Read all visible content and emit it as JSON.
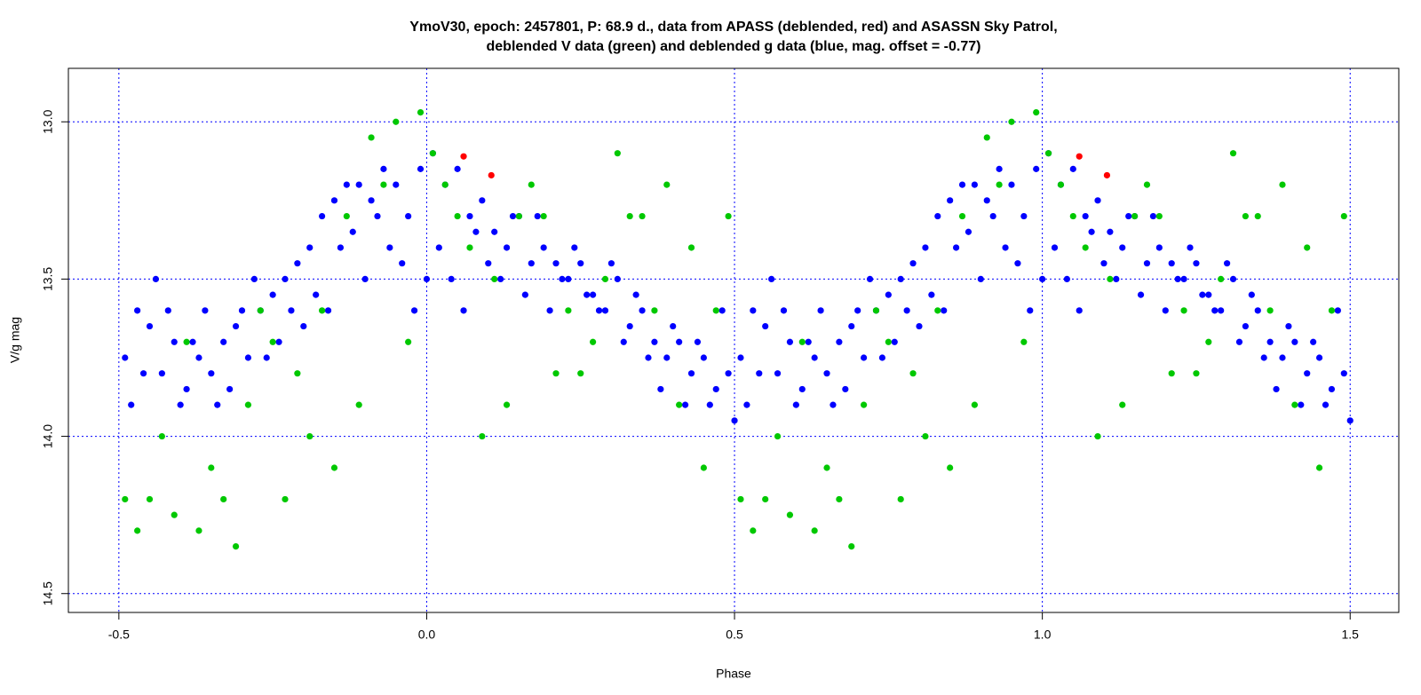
{
  "chart_data": {
    "type": "scatter",
    "title": "YmoV30, epoch: 2457801, P: 68.9 d., data from APASS (deblended, red) and ASASSN Sky Patrol,",
    "subtitle": "deblended V data (green) and deblended g data (blue, mag. offset = -0.77)",
    "xlabel": "Phase",
    "ylabel": "V/g mag",
    "xlim": [
      -0.582,
      1.579
    ],
    "ylim": [
      14.56,
      12.83
    ],
    "xticks": [
      {
        "value": -0.5,
        "label": "-0.5"
      },
      {
        "value": 0,
        "label": "0.0"
      },
      {
        "value": 0.5,
        "label": "0.5"
      },
      {
        "value": 1,
        "label": "1.0"
      },
      {
        "value": 1.5,
        "label": "1.5"
      }
    ],
    "yticks": [
      {
        "value": 13,
        "label": "13.0"
      },
      {
        "value": 13.5,
        "label": "13.5"
      },
      {
        "value": 14,
        "label": "14.0"
      },
      {
        "value": 14.5,
        "label": "14.5"
      }
    ],
    "grid": true,
    "series": [
      {
        "color": "#0000ff",
        "x": [
          -0.49,
          -0.47,
          -0.45,
          -0.43,
          -0.41,
          -0.39,
          -0.37,
          -0.35,
          -0.33,
          -0.31,
          -0.29,
          -0.27,
          -0.25,
          -0.23,
          -0.21,
          -0.19,
          -0.17,
          -0.15,
          -0.13,
          -0.11,
          -0.09,
          -0.07,
          -0.05,
          -0.03,
          -0.01,
          0.01,
          0.03,
          0.05,
          0.07,
          0.09,
          0.11,
          0.13,
          0.15,
          0.17,
          0.19,
          0.21,
          0.23,
          0.25,
          0.27,
          0.29,
          0.31,
          0.33,
          0.35,
          0.37,
          0.39,
          0.41,
          0.43,
          0.45,
          0.47,
          0.49
        ],
        "values": [
          13.75,
          13.6,
          13.65,
          13.8,
          13.7,
          13.85,
          13.75,
          13.8,
          13.7,
          13.65,
          13.75,
          13.6,
          13.55,
          13.5,
          13.45,
          13.4,
          13.3,
          13.25,
          13.2,
          13.2,
          13.25,
          13.15,
          13.2,
          13.3,
          13.15,
          13.1,
          13.2,
          13.15,
          13.3,
          13.25,
          13.35,
          13.4,
          13.3,
          13.45,
          13.4,
          13.45,
          13.5,
          13.45,
          13.55,
          13.6,
          13.5,
          13.65,
          13.6,
          13.7,
          13.75,
          13.7,
          13.8,
          13.75,
          13.85,
          13.8
        ]
      },
      {
        "color": "#0000ff",
        "x": [
          -0.48,
          -0.46,
          -0.44,
          -0.42,
          -0.4,
          -0.38,
          -0.36,
          -0.34,
          -0.32,
          -0.3,
          -0.28,
          -0.26,
          -0.24,
          -0.22,
          -0.2,
          -0.18,
          -0.16,
          -0.14,
          -0.12,
          -0.1,
          -0.08,
          -0.06,
          -0.04,
          -0.02,
          0,
          0.02,
          0.04,
          0.06,
          0.08,
          0.1,
          0.12,
          0.14,
          0.16,
          0.18,
          0.2,
          0.22,
          0.24,
          0.26,
          0.28,
          0.3,
          0.32,
          0.34,
          0.36,
          0.38,
          0.4,
          0.42,
          0.44,
          0.46,
          0.48,
          0.5
        ],
        "values": [
          13.9,
          13.8,
          13.5,
          13.6,
          13.9,
          13.7,
          13.6,
          13.9,
          13.85,
          13.6,
          13.5,
          13.75,
          13.7,
          13.6,
          13.65,
          13.55,
          13.6,
          13.4,
          13.35,
          13.5,
          13.3,
          13.4,
          13.45,
          13.6,
          13.5,
          13.4,
          13.5,
          13.6,
          13.35,
          13.45,
          13.5,
          13.3,
          13.55,
          13.3,
          13.6,
          13.5,
          13.4,
          13.55,
          13.6,
          13.45,
          13.7,
          13.55,
          13.75,
          13.85,
          13.65,
          13.9,
          13.7,
          13.9,
          13.6,
          13.95
        ]
      },
      {
        "color": "#0000ff",
        "x": [
          0.51,
          0.53,
          0.55,
          0.57,
          0.59,
          0.61,
          0.63,
          0.65,
          0.67,
          0.69,
          0.71,
          0.73,
          0.75,
          0.77,
          0.79,
          0.81,
          0.83,
          0.85,
          0.87,
          0.89,
          0.91,
          0.93,
          0.95,
          0.97,
          0.99,
          1.01,
          1.03,
          1.05,
          1.07,
          1.09,
          1.11,
          1.13,
          1.15,
          1.17,
          1.19,
          1.21,
          1.23,
          1.25,
          1.27,
          1.29,
          1.31,
          1.33,
          1.35,
          1.37,
          1.39,
          1.41,
          1.43,
          1.45,
          1.47,
          1.49
        ],
        "values": [
          13.75,
          13.6,
          13.65,
          13.8,
          13.7,
          13.85,
          13.75,
          13.8,
          13.7,
          13.65,
          13.75,
          13.6,
          13.55,
          13.5,
          13.45,
          13.4,
          13.3,
          13.25,
          13.2,
          13.2,
          13.25,
          13.15,
          13.2,
          13.3,
          13.15,
          13.1,
          13.2,
          13.15,
          13.3,
          13.25,
          13.35,
          13.4,
          13.3,
          13.45,
          13.4,
          13.45,
          13.5,
          13.45,
          13.55,
          13.6,
          13.5,
          13.65,
          13.6,
          13.7,
          13.75,
          13.7,
          13.8,
          13.75,
          13.85,
          13.8
        ]
      },
      {
        "color": "#0000ff",
        "x": [
          0.52,
          0.54,
          0.56,
          0.58,
          0.6,
          0.62,
          0.64,
          0.66,
          0.68,
          0.7,
          0.72,
          0.74,
          0.76,
          0.78,
          0.8,
          0.82,
          0.84,
          0.86,
          0.88,
          0.9,
          0.92,
          0.94,
          0.96,
          0.98,
          1,
          1.02,
          1.04,
          1.06,
          1.08,
          1.1,
          1.12,
          1.14,
          1.16,
          1.18,
          1.2,
          1.22,
          1.24,
          1.26,
          1.28,
          1.3,
          1.32,
          1.34,
          1.36,
          1.38,
          1.4,
          1.42,
          1.44,
          1.46,
          1.48,
          1.5
        ],
        "values": [
          13.9,
          13.8,
          13.5,
          13.6,
          13.9,
          13.7,
          13.6,
          13.9,
          13.85,
          13.6,
          13.5,
          13.75,
          13.7,
          13.6,
          13.65,
          13.55,
          13.6,
          13.4,
          13.35,
          13.5,
          13.3,
          13.4,
          13.45,
          13.6,
          13.5,
          13.4,
          13.5,
          13.6,
          13.35,
          13.45,
          13.5,
          13.3,
          13.55,
          13.3,
          13.6,
          13.5,
          13.4,
          13.55,
          13.6,
          13.45,
          13.7,
          13.55,
          13.75,
          13.85,
          13.65,
          13.9,
          13.7,
          13.9,
          13.6,
          13.95
        ]
      },
      {
        "color": "#00c800",
        "x": [
          -0.49,
          -0.45,
          -0.41,
          -0.37,
          -0.33,
          -0.29,
          -0.25,
          -0.21,
          -0.17,
          -0.13,
          -0.09,
          -0.05,
          -0.01,
          0.03,
          0.07,
          0.11,
          0.15,
          0.19,
          0.23,
          0.27,
          0.31,
          0.35,
          0.39,
          0.43,
          0.47
        ],
        "values": [
          14.2,
          14.2,
          14.25,
          14.3,
          14.2,
          13.9,
          13.7,
          13.8,
          13.6,
          13.3,
          13.05,
          13.0,
          12.97,
          13.2,
          13.4,
          13.5,
          13.3,
          13.3,
          13.6,
          13.7,
          13.1,
          13.3,
          13.2,
          13.4,
          13.6
        ]
      },
      {
        "color": "#00c800",
        "x": [
          -0.47,
          -0.43,
          -0.39,
          -0.35,
          -0.31,
          -0.27,
          -0.23,
          -0.19,
          -0.15,
          -0.11,
          -0.07,
          -0.03,
          0.01,
          0.05,
          0.09,
          0.13,
          0.17,
          0.21,
          0.25,
          0.29,
          0.33,
          0.37,
          0.41,
          0.45,
          0.49
        ],
        "values": [
          14.3,
          14.0,
          13.7,
          14.1,
          14.35,
          13.6,
          14.2,
          14.0,
          14.1,
          13.9,
          13.2,
          13.7,
          13.1,
          13.3,
          14.0,
          13.9,
          13.2,
          13.8,
          13.8,
          13.5,
          13.3,
          13.6,
          13.9,
          14.1,
          13.3
        ]
      },
      {
        "color": "#00c800",
        "x": [
          0.51,
          0.55,
          0.59,
          0.63,
          0.67,
          0.71,
          0.75,
          0.79,
          0.83,
          0.87,
          0.91,
          0.95,
          0.99,
          1.03,
          1.07,
          1.11,
          1.15,
          1.19,
          1.23,
          1.27,
          1.31,
          1.35,
          1.39,
          1.43,
          1.47
        ],
        "values": [
          14.2,
          14.2,
          14.25,
          14.3,
          14.2,
          13.9,
          13.7,
          13.8,
          13.6,
          13.3,
          13.05,
          13.0,
          12.97,
          13.2,
          13.4,
          13.5,
          13.3,
          13.3,
          13.6,
          13.7,
          13.1,
          13.3,
          13.2,
          13.4,
          13.6
        ]
      },
      {
        "color": "#00c800",
        "x": [
          0.53,
          0.57,
          0.61,
          0.65,
          0.69,
          0.73,
          0.77,
          0.81,
          0.85,
          0.89,
          0.93,
          0.97,
          1.01,
          1.05,
          1.09,
          1.13,
          1.17,
          1.21,
          1.25,
          1.29,
          1.33,
          1.37,
          1.41,
          1.45,
          1.49
        ],
        "values": [
          14.3,
          14.0,
          13.7,
          14.1,
          14.35,
          13.6,
          14.2,
          14.0,
          14.1,
          13.9,
          13.2,
          13.7,
          13.1,
          13.3,
          14.0,
          13.9,
          13.2,
          13.8,
          13.8,
          13.5,
          13.3,
          13.6,
          13.9,
          14.1,
          13.3
        ]
      },
      {
        "color": "#ff0000",
        "x": [
          0.06,
          0.105,
          1.06,
          1.105
        ],
        "values": [
          13.11,
          13.17,
          13.11,
          13.17
        ]
      }
    ]
  }
}
